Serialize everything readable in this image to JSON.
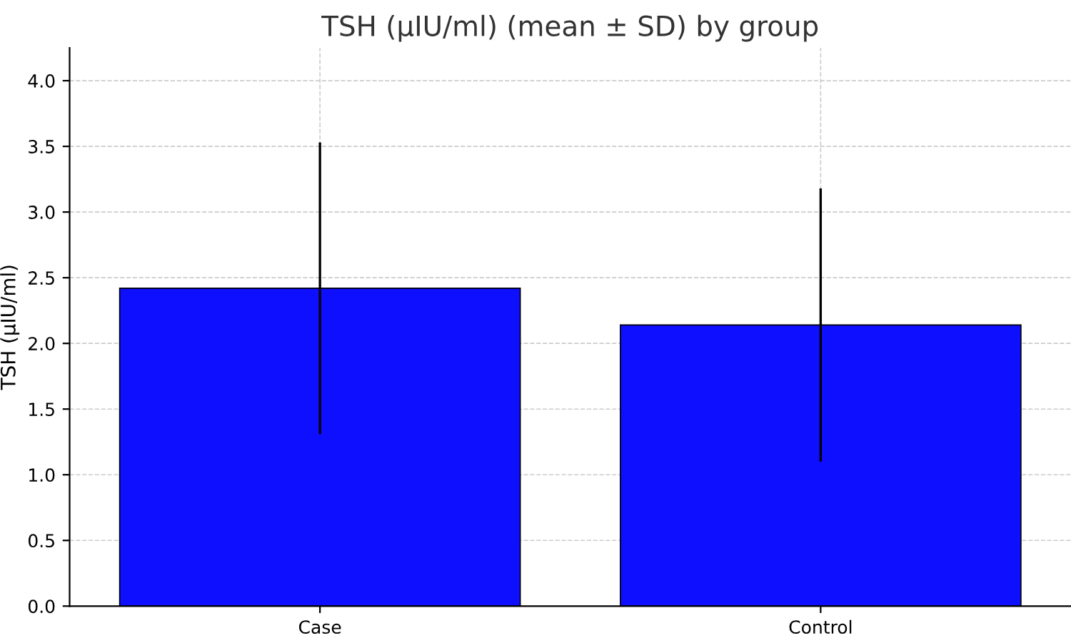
{
  "chart_data": {
    "type": "bar",
    "title": "TSH (µIU/ml) (mean ± SD) by group",
    "ylabel": "TSH (µIU/ml)",
    "categories": [
      "Case",
      "Control"
    ],
    "values": [
      2.42,
      2.14
    ],
    "errors": [
      1.11,
      1.04
    ],
    "color": "#0f0fff",
    "ylim": [
      0,
      4.25
    ],
    "yticks": [
      {
        "value": 0,
        "label": "0.0"
      },
      0.5,
      {
        "value": 1,
        "label": "1.0"
      },
      1.5,
      {
        "value": 2,
        "label": "2.0"
      },
      2.5,
      {
        "value": 3,
        "label": "3.0"
      },
      3.5,
      {
        "value": 4,
        "label": "4.0"
      }
    ],
    "grid": true
  }
}
